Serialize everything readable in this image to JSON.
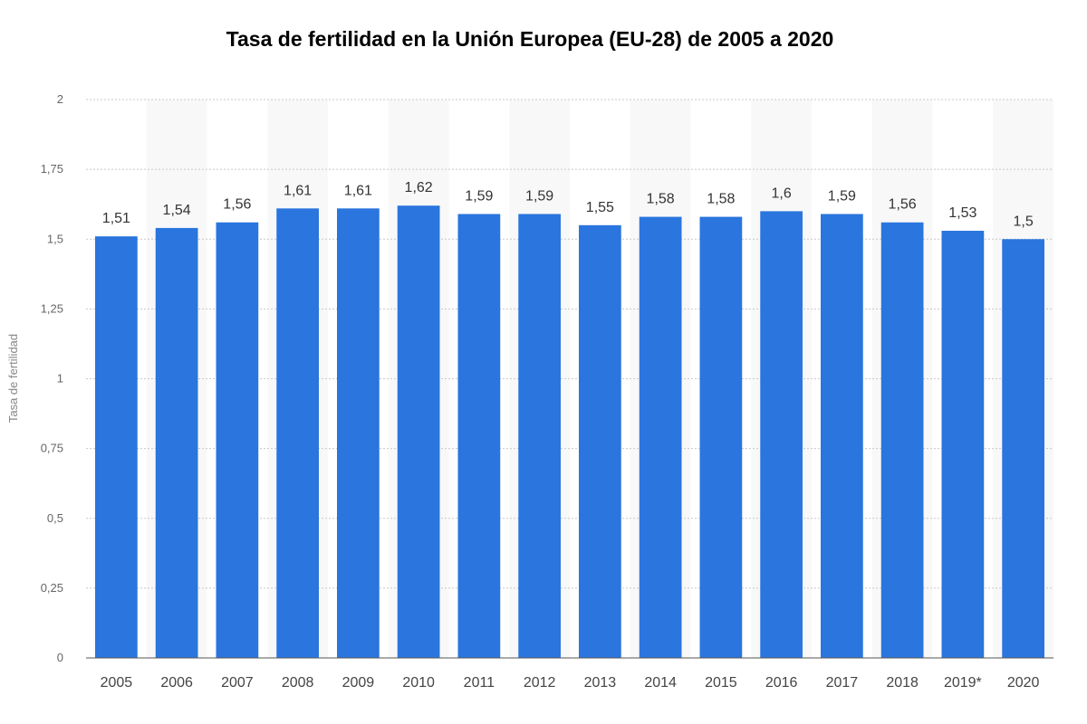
{
  "chart_data": {
    "type": "bar",
    "title": "Tasa de fertilidad en la Unión Europea (EU-28) de 2005 a 2020",
    "xlabel": "",
    "ylabel": "Tasa de fertilidad",
    "ylim": [
      0,
      2
    ],
    "yticks": [
      0,
      0.25,
      0.5,
      0.75,
      1,
      1.25,
      1.5,
      1.75,
      2
    ],
    "ytick_labels": [
      "0",
      "0,25",
      "0,5",
      "0,75",
      "1",
      "1,25",
      "1,5",
      "1,75",
      "2"
    ],
    "categories": [
      "2005",
      "2006",
      "2007",
      "2008",
      "2009",
      "2010",
      "2011",
      "2012",
      "2013",
      "2014",
      "2015",
      "2016",
      "2017",
      "2018",
      "2019*",
      "2020"
    ],
    "values": [
      1.51,
      1.54,
      1.56,
      1.61,
      1.61,
      1.62,
      1.59,
      1.59,
      1.55,
      1.58,
      1.58,
      1.6,
      1.59,
      1.56,
      1.53,
      1.5
    ],
    "value_labels": [
      "1,51",
      "1,54",
      "1,56",
      "1,61",
      "1,61",
      "1,62",
      "1,59",
      "1,59",
      "1,55",
      "1,58",
      "1,58",
      "1,6",
      "1,59",
      "1,56",
      "1,53",
      "1,5"
    ],
    "bar_color": "#2a75de",
    "band_color": "#f8f8f8",
    "grid": true,
    "legend": false
  }
}
